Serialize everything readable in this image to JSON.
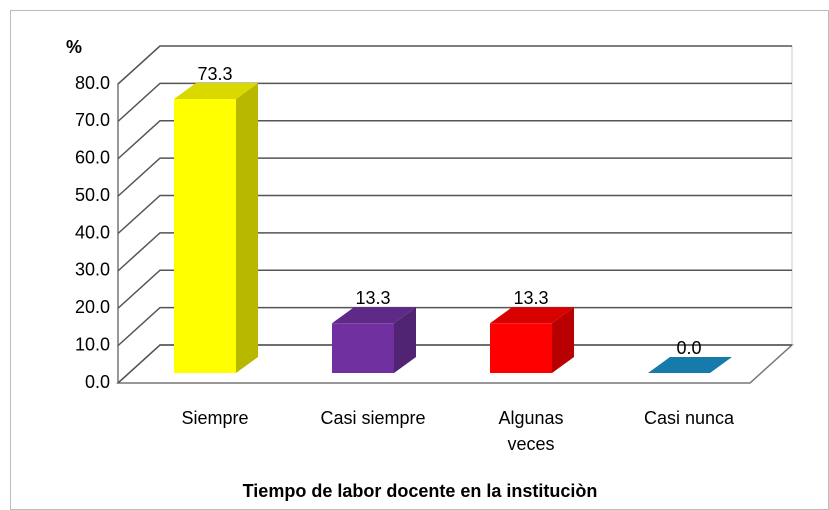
{
  "chart_data": {
    "type": "bar3d",
    "y_label": "%",
    "x_label": "Tiempo de labor docente en la instituciòn",
    "categories": [
      "Siempre",
      "Casi siempre",
      "Algunas veces",
      "Casi nunca"
    ],
    "values": [
      73.3,
      13.3,
      13.3,
      0.0
    ],
    "value_labels": [
      "73.3",
      "13.3",
      "13.3",
      "0.0"
    ],
    "colors": [
      "#ffff00",
      "#7030a0",
      "#ff0000",
      "#1a8fc8"
    ],
    "ylim": [
      0,
      80
    ],
    "yticks": [
      {
        "value": 0,
        "label": "0.0"
      },
      {
        "value": 10,
        "label": "10.0"
      },
      {
        "value": 20,
        "label": "20.0"
      },
      {
        "value": 30,
        "label": "30.0"
      },
      {
        "value": 40,
        "label": "40.0"
      },
      {
        "value": 50,
        "label": "50.0"
      },
      {
        "value": 60,
        "label": "60.0"
      },
      {
        "value": 70,
        "label": "70.0"
      },
      {
        "value": 80,
        "label": "80.0"
      }
    ],
    "grid": true
  }
}
